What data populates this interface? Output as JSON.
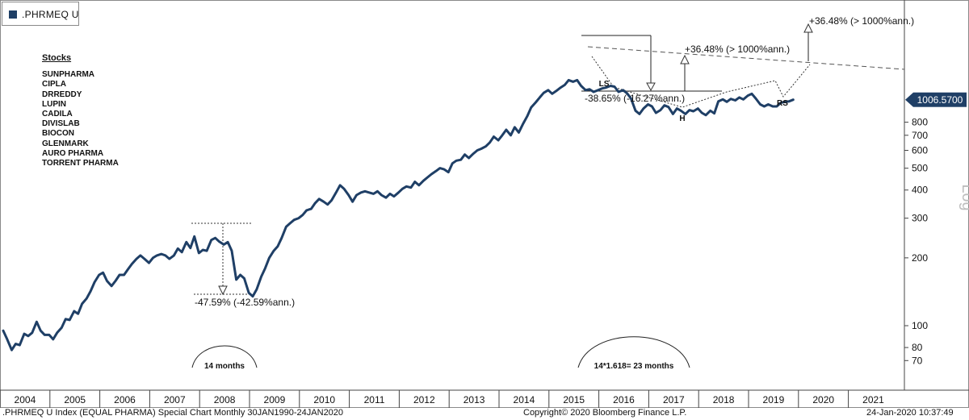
{
  "legend": {
    "label": ".PHRMEQ U",
    "color": "#1f3f66"
  },
  "stocks_panel": {
    "title": "Stocks",
    "items": [
      "SUNPHARMA",
      "CIPLA",
      "DRREDDY",
      "LUPIN",
      "CADILA",
      "DIVISLAB",
      "BIOCON",
      "GLENMARK",
      "AURO PHARMA",
      "TORRENT PHARMA"
    ]
  },
  "footer": {
    "left": ".PHRMEQ U Index (EQUAL PHARMA) Special Chart  Monthly 30JAN1990-24JAN2020",
    "center": "Copyright© 2020 Bloomberg Finance L.P.",
    "right": "24-Jan-2020 10:37:49"
  },
  "chart_data": {
    "type": "line",
    "yscale": "log",
    "ylabel": "Log",
    "line_color": "#1f3f66",
    "ylim": [
      62,
      1300
    ],
    "yticks": [
      70,
      80,
      100,
      200,
      300,
      400,
      500,
      600,
      700,
      800
    ],
    "last_value_label": "1006.5700",
    "x_categories": [
      "2004",
      "2005",
      "2006",
      "2007",
      "2008",
      "2009",
      "2010",
      "2011",
      "2012",
      "2013",
      "2014",
      "2015",
      "2016",
      "2017",
      "2018",
      "2019",
      "2020",
      "2021"
    ],
    "series": [
      {
        "values": [
          [
            2004.0,
            95
          ],
          [
            2004.08,
            87
          ],
          [
            2004.17,
            78
          ],
          [
            2004.25,
            83
          ],
          [
            2004.33,
            82
          ],
          [
            2004.42,
            92
          ],
          [
            2004.5,
            90
          ],
          [
            2004.58,
            93
          ],
          [
            2004.67,
            104
          ],
          [
            2004.75,
            95
          ],
          [
            2004.83,
            91
          ],
          [
            2004.92,
            91
          ],
          [
            2005.0,
            87
          ],
          [
            2005.08,
            93
          ],
          [
            2005.17,
            98
          ],
          [
            2005.25,
            107
          ],
          [
            2005.33,
            106
          ],
          [
            2005.42,
            116
          ],
          [
            2005.5,
            113
          ],
          [
            2005.58,
            125
          ],
          [
            2005.67,
            132
          ],
          [
            2005.75,
            142
          ],
          [
            2005.83,
            156
          ],
          [
            2005.92,
            168
          ],
          [
            2006.0,
            172
          ],
          [
            2006.08,
            158
          ],
          [
            2006.17,
            150
          ],
          [
            2006.25,
            158
          ],
          [
            2006.33,
            168
          ],
          [
            2006.42,
            168
          ],
          [
            2006.5,
            178
          ],
          [
            2006.58,
            188
          ],
          [
            2006.67,
            198
          ],
          [
            2006.75,
            205
          ],
          [
            2006.83,
            198
          ],
          [
            2006.92,
            190
          ],
          [
            2007.0,
            200
          ],
          [
            2007.08,
            205
          ],
          [
            2007.17,
            208
          ],
          [
            2007.25,
            205
          ],
          [
            2007.33,
            198
          ],
          [
            2007.42,
            205
          ],
          [
            2007.5,
            220
          ],
          [
            2007.58,
            212
          ],
          [
            2007.67,
            235
          ],
          [
            2007.75,
            221
          ],
          [
            2007.83,
            249
          ],
          [
            2007.92,
            210
          ],
          [
            2008.0,
            217
          ],
          [
            2008.08,
            215
          ],
          [
            2008.17,
            240
          ],
          [
            2008.25,
            245
          ],
          [
            2008.33,
            236
          ],
          [
            2008.42,
            229
          ],
          [
            2008.5,
            235
          ],
          [
            2008.58,
            215
          ],
          [
            2008.67,
            160
          ],
          [
            2008.75,
            168
          ],
          [
            2008.83,
            162
          ],
          [
            2008.92,
            140
          ],
          [
            2009.0,
            135
          ],
          [
            2009.08,
            145
          ],
          [
            2009.17,
            165
          ],
          [
            2009.25,
            180
          ],
          [
            2009.33,
            200
          ],
          [
            2009.42,
            215
          ],
          [
            2009.5,
            225
          ],
          [
            2009.58,
            245
          ],
          [
            2009.67,
            275
          ],
          [
            2009.75,
            285
          ],
          [
            2009.83,
            295
          ],
          [
            2009.92,
            300
          ],
          [
            2010.0,
            310
          ],
          [
            2010.08,
            325
          ],
          [
            2010.17,
            330
          ],
          [
            2010.25,
            350
          ],
          [
            2010.33,
            365
          ],
          [
            2010.42,
            355
          ],
          [
            2010.5,
            345
          ],
          [
            2010.58,
            360
          ],
          [
            2010.67,
            390
          ],
          [
            2010.75,
            420
          ],
          [
            2010.83,
            405
          ],
          [
            2010.92,
            380
          ],
          [
            2011.0,
            355
          ],
          [
            2011.08,
            380
          ],
          [
            2011.17,
            390
          ],
          [
            2011.25,
            395
          ],
          [
            2011.33,
            390
          ],
          [
            2011.42,
            385
          ],
          [
            2011.5,
            395
          ],
          [
            2011.58,
            380
          ],
          [
            2011.67,
            370
          ],
          [
            2011.75,
            385
          ],
          [
            2011.83,
            375
          ],
          [
            2011.92,
            390
          ],
          [
            2012.0,
            405
          ],
          [
            2012.08,
            415
          ],
          [
            2012.17,
            410
          ],
          [
            2012.25,
            435
          ],
          [
            2012.33,
            420
          ],
          [
            2012.42,
            440
          ],
          [
            2012.5,
            455
          ],
          [
            2012.58,
            470
          ],
          [
            2012.67,
            485
          ],
          [
            2012.75,
            500
          ],
          [
            2012.83,
            495
          ],
          [
            2012.92,
            480
          ],
          [
            2013.0,
            525
          ],
          [
            2013.08,
            540
          ],
          [
            2013.17,
            545
          ],
          [
            2013.25,
            575
          ],
          [
            2013.33,
            555
          ],
          [
            2013.42,
            580
          ],
          [
            2013.5,
            600
          ],
          [
            2013.58,
            610
          ],
          [
            2013.67,
            625
          ],
          [
            2013.75,
            650
          ],
          [
            2013.83,
            690
          ],
          [
            2013.92,
            665
          ],
          [
            2014.0,
            700
          ],
          [
            2014.08,
            740
          ],
          [
            2014.17,
            700
          ],
          [
            2014.25,
            760
          ],
          [
            2014.33,
            720
          ],
          [
            2014.42,
            790
          ],
          [
            2014.5,
            850
          ],
          [
            2014.58,
            930
          ],
          [
            2014.67,
            980
          ],
          [
            2014.75,
            1030
          ],
          [
            2014.83,
            1080
          ],
          [
            2014.92,
            1110
          ],
          [
            2015.0,
            1070
          ],
          [
            2015.08,
            1100
          ],
          [
            2015.17,
            1140
          ],
          [
            2015.25,
            1170
          ],
          [
            2015.33,
            1230
          ],
          [
            2015.42,
            1210
          ],
          [
            2015.5,
            1230
          ],
          [
            2015.58,
            1160
          ],
          [
            2015.67,
            1110
          ],
          [
            2015.75,
            1120
          ],
          [
            2015.83,
            1090
          ],
          [
            2015.92,
            1110
          ],
          [
            2016.0,
            1130
          ],
          [
            2016.08,
            1140
          ],
          [
            2016.17,
            1160
          ],
          [
            2016.25,
            1150
          ],
          [
            2016.33,
            1090
          ],
          [
            2016.42,
            1110
          ],
          [
            2016.5,
            1075
          ],
          [
            2016.58,
            1020
          ],
          [
            2016.67,
            900
          ],
          [
            2016.75,
            870
          ],
          [
            2016.83,
            920
          ],
          [
            2016.92,
            960
          ],
          [
            2017.0,
            940
          ],
          [
            2017.08,
            880
          ],
          [
            2017.17,
            905
          ],
          [
            2017.25,
            950
          ],
          [
            2017.33,
            935
          ],
          [
            2017.42,
            870
          ],
          [
            2017.5,
            920
          ],
          [
            2017.58,
            900
          ],
          [
            2017.67,
            870
          ],
          [
            2017.75,
            905
          ],
          [
            2017.83,
            895
          ],
          [
            2017.92,
            920
          ],
          [
            2018.0,
            880
          ],
          [
            2018.08,
            860
          ],
          [
            2018.17,
            900
          ],
          [
            2018.25,
            875
          ],
          [
            2018.33,
            990
          ],
          [
            2018.42,
            1010
          ],
          [
            2018.5,
            985
          ],
          [
            2018.58,
            1015
          ],
          [
            2018.67,
            1000
          ],
          [
            2018.75,
            1030
          ],
          [
            2018.83,
            1010
          ],
          [
            2018.92,
            1050
          ],
          [
            2019.0,
            1070
          ],
          [
            2019.08,
            1020
          ],
          [
            2019.17,
            960
          ],
          [
            2019.25,
            940
          ],
          [
            2019.33,
            960
          ],
          [
            2019.42,
            940
          ],
          [
            2019.5,
            940
          ],
          [
            2019.58,
            975
          ],
          [
            2019.67,
            985
          ],
          [
            2019.75,
            990
          ],
          [
            2019.83,
            1006.57
          ]
        ]
      }
    ],
    "annotations": [
      {
        "text": "-47.59% (-42.59%ann.)"
      },
      {
        "text": "14 months"
      },
      {
        "text": "14*1.618= 23 months"
      },
      {
        "text": "LS"
      },
      {
        "text": "H"
      },
      {
        "text": "RS"
      },
      {
        "text": "-38.65% (-16.27%ann.)"
      },
      {
        "text": "+36.48% (> 1000%ann.)"
      },
      {
        "text": "+36.48% (> 1000%ann.)"
      }
    ]
  }
}
